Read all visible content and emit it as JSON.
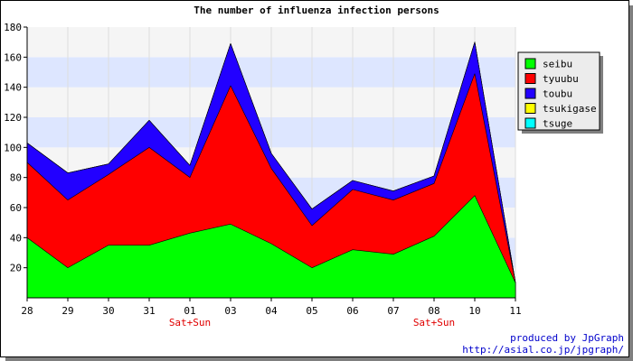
{
  "chart_data": {
    "type": "area",
    "stacked": true,
    "title": "The number of influenza infection persons",
    "categories": [
      "28",
      "29",
      "30",
      "31",
      "01",
      "03",
      "04",
      "05",
      "06",
      "07",
      "08",
      "10",
      "11"
    ],
    "day_labels": {
      "01": "Sat+Sun",
      "08": "Sat+Sun"
    },
    "series": [
      {
        "name": "seibu",
        "color": "#00ff00",
        "values": [
          40,
          20,
          35,
          35,
          43,
          49,
          36,
          20,
          32,
          29,
          41,
          68,
          10
        ]
      },
      {
        "name": "tyuubu",
        "color": "#ff0000",
        "values": [
          50,
          45,
          47,
          65,
          37,
          92,
          50,
          28,
          40,
          36,
          35,
          81,
          0
        ]
      },
      {
        "name": "toubu",
        "color": "#2200ff",
        "values": [
          13,
          18,
          7,
          18,
          8,
          28,
          10,
          11,
          6,
          6,
          5,
          21,
          0
        ]
      },
      {
        "name": "tsukigase",
        "color": "#ffff00",
        "values": [
          0,
          0,
          0,
          0,
          0,
          0,
          0,
          0,
          0,
          0,
          0,
          0,
          0
        ]
      },
      {
        "name": "tsuge",
        "color": "#00ffff",
        "values": [
          0,
          0,
          0,
          0,
          0,
          0,
          0,
          0,
          0,
          0,
          0,
          0,
          0
        ]
      }
    ],
    "ylim": [
      0,
      180
    ],
    "yticks": [
      20,
      40,
      60,
      80,
      100,
      120,
      140,
      160,
      180
    ],
    "grid": true,
    "grid_bands": [
      "#f5f5f5",
      "#dde6ff"
    ],
    "legend_position": "right"
  },
  "footer": {
    "line1": "produced by JpGraph",
    "line2": "http://asial.co.jp/jpgraph/"
  }
}
